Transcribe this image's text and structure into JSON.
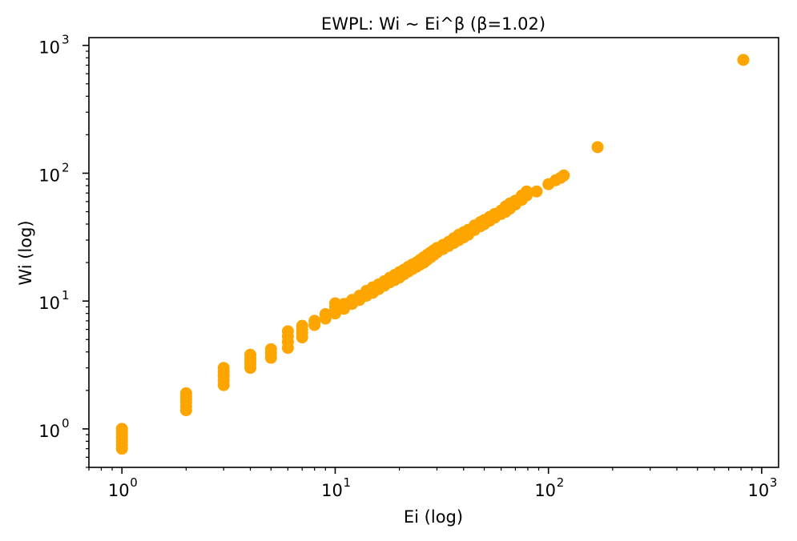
{
  "chart_data": {
    "type": "scatter",
    "title": "EWPL: Wi ~ Ei^β (β=1.02)",
    "xlabel": "Ei (log)",
    "ylabel": "Wi (log)",
    "xscale": "log",
    "yscale": "log",
    "xlim": [
      0.7,
      1200
    ],
    "ylim": [
      0.5,
      1150
    ],
    "grid": false,
    "marker_color": "#FFA500",
    "x_ticks": [
      {
        "base": "10",
        "exp": "0",
        "value": 1
      },
      {
        "base": "10",
        "exp": "1",
        "value": 10
      },
      {
        "base": "10",
        "exp": "2",
        "value": 100
      },
      {
        "base": "10",
        "exp": "3",
        "value": 1000
      }
    ],
    "y_ticks": [
      {
        "base": "10",
        "exp": "0",
        "value": 1
      },
      {
        "base": "10",
        "exp": "1",
        "value": 10
      },
      {
        "base": "10",
        "exp": "2",
        "value": 100
      },
      {
        "base": "10",
        "exp": "3",
        "value": 1000
      }
    ],
    "points": [
      [
        1,
        0.7
      ],
      [
        1,
        0.75
      ],
      [
        1,
        0.8
      ],
      [
        1,
        0.85
      ],
      [
        1,
        0.9
      ],
      [
        1,
        0.95
      ],
      [
        1,
        1.0
      ],
      [
        2,
        1.4
      ],
      [
        2,
        1.5
      ],
      [
        2,
        1.6
      ],
      [
        2,
        1.7
      ],
      [
        2,
        1.8
      ],
      [
        2,
        1.9
      ],
      [
        3,
        2.2
      ],
      [
        3,
        2.4
      ],
      [
        3,
        2.6
      ],
      [
        3,
        2.8
      ],
      [
        3,
        3.0
      ],
      [
        4,
        3.0
      ],
      [
        4,
        3.2
      ],
      [
        4,
        3.4
      ],
      [
        4,
        3.6
      ],
      [
        4,
        3.8
      ],
      [
        5,
        3.6
      ],
      [
        5,
        3.9
      ],
      [
        5,
        4.2
      ],
      [
        6,
        4.3
      ],
      [
        6,
        4.8
      ],
      [
        6,
        5.3
      ],
      [
        6,
        5.8
      ],
      [
        7,
        5.2
      ],
      [
        7,
        5.6
      ],
      [
        7,
        6.0
      ],
      [
        7,
        6.4
      ],
      [
        8,
        6.5
      ],
      [
        8,
        7.0
      ],
      [
        9,
        7.3
      ],
      [
        9,
        7.9
      ],
      [
        10,
        8.0
      ],
      [
        10,
        8.5
      ],
      [
        10,
        9.0
      ],
      [
        10,
        9.6
      ],
      [
        11,
        8.7
      ],
      [
        11,
        9.5
      ],
      [
        12,
        9.5
      ],
      [
        12,
        10.2
      ],
      [
        13,
        10.2
      ],
      [
        13,
        11.0
      ],
      [
        14,
        11.0
      ],
      [
        14,
        12.0
      ],
      [
        15,
        11.6
      ],
      [
        15,
        12.8
      ],
      [
        16,
        12.4
      ],
      [
        16,
        13.5
      ],
      [
        17,
        13.2
      ],
      [
        17,
        14.3
      ],
      [
        18,
        14.0
      ],
      [
        18,
        15.2
      ],
      [
        19,
        14.6
      ],
      [
        19,
        16.0
      ],
      [
        20,
        15.3
      ],
      [
        20,
        16.8
      ],
      [
        21,
        16.2
      ],
      [
        21,
        17.6
      ],
      [
        22,
        17.0
      ],
      [
        22,
        18.5
      ],
      [
        23,
        17.8
      ],
      [
        23,
        19.3
      ],
      [
        24,
        18.5
      ],
      [
        24,
        20.0
      ],
      [
        25,
        19.3
      ],
      [
        25,
        21.0
      ],
      [
        26,
        20.0
      ],
      [
        26,
        22.0
      ],
      [
        27,
        21.0
      ],
      [
        27,
        23.0
      ],
      [
        28,
        22.0
      ],
      [
        28,
        24.0
      ],
      [
        29,
        23.0
      ],
      [
        29,
        25.0
      ],
      [
        30,
        24.0
      ],
      [
        30,
        26.0
      ],
      [
        32,
        25.5
      ],
      [
        32,
        27.5
      ],
      [
        34,
        27.0
      ],
      [
        34,
        29.0
      ],
      [
        36,
        28.5
      ],
      [
        36,
        31.0
      ],
      [
        38,
        30.0
      ],
      [
        38,
        33.0
      ],
      [
        40,
        31.5
      ],
      [
        40,
        34.5
      ],
      [
        42,
        33.0
      ],
      [
        42,
        36.0
      ],
      [
        45,
        36.0
      ],
      [
        45,
        39.0
      ],
      [
        48,
        38.5
      ],
      [
        48,
        41.5
      ],
      [
        50,
        40.0
      ],
      [
        50,
        43.0
      ],
      [
        53,
        42.5
      ],
      [
        53,
        45.5
      ],
      [
        56,
        45.0
      ],
      [
        56,
        48.0
      ],
      [
        60,
        48.0
      ],
      [
        60,
        51.0
      ],
      [
        63,
        50.0
      ],
      [
        63,
        55.0
      ],
      [
        66,
        53.0
      ],
      [
        66,
        58.0
      ],
      [
        70,
        57.0
      ],
      [
        70,
        61.0
      ],
      [
        75,
        62.0
      ],
      [
        75,
        67.0
      ],
      [
        79,
        67.0
      ],
      [
        79,
        72.0
      ],
      [
        88,
        72.0
      ],
      [
        100,
        82.0
      ],
      [
        108,
        88.0
      ],
      [
        114,
        92.0
      ],
      [
        118,
        96.0
      ],
      [
        170,
        160.0
      ],
      [
        820,
        770.0
      ]
    ]
  }
}
